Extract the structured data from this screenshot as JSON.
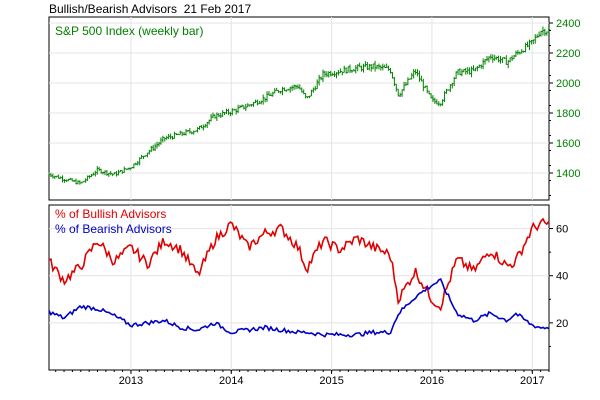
{
  "title": "Bullish/Bearish Advisors  21 Feb 2017",
  "chart_data": [
    {
      "type": "bar",
      "subtype": "ohlc-weekly",
      "legend": "S&P 500 Index (weekly bar)",
      "color": "#008000",
      "y_axis_side": "right",
      "ylim": [
        1220,
        2440
      ],
      "y_ticks": [
        "1400",
        "1600",
        "1800",
        "2000",
        "2200",
        "2400"
      ],
      "x_ticks": [
        "2013",
        "2014",
        "2015",
        "2016",
        "2017"
      ],
      "x": [
        "2012-03",
        "2012-05",
        "2012-07",
        "2012-09",
        "2012-11",
        "2013-01",
        "2013-03",
        "2013-05",
        "2013-07",
        "2013-09",
        "2013-11",
        "2014-01",
        "2014-03",
        "2014-05",
        "2014-07",
        "2014-09",
        "2014-10",
        "2014-12",
        "2015-02",
        "2015-04",
        "2015-06",
        "2015-08",
        "2015-09",
        "2015-11",
        "2016-01",
        "2016-02",
        "2016-04",
        "2016-06",
        "2016-08",
        "2016-10",
        "2016-11",
        "2017-01",
        "2017-02"
      ],
      "values": [
        1395,
        1360,
        1330,
        1420,
        1390,
        1440,
        1540,
        1630,
        1660,
        1690,
        1780,
        1810,
        1850,
        1900,
        1960,
        1980,
        1890,
        2060,
        2080,
        2100,
        2110,
        2090,
        1920,
        2080,
        1880,
        1870,
        2070,
        2080,
        2180,
        2140,
        2190,
        2270,
        2350
      ],
      "grid": true
    },
    {
      "type": "line",
      "legend_position": "top-left",
      "y_axis_side": "right",
      "ylim": [
        0,
        70
      ],
      "y_ticks": [
        "20",
        "40",
        "60"
      ],
      "x_ticks": [
        "2013",
        "2014",
        "2015",
        "2016",
        "2017"
      ],
      "x": [
        "2012-03",
        "2012-05",
        "2012-07",
        "2012-09",
        "2012-11",
        "2013-01",
        "2013-03",
        "2013-05",
        "2013-07",
        "2013-09",
        "2013-11",
        "2014-01",
        "2014-03",
        "2014-05",
        "2014-07",
        "2014-09",
        "2014-10",
        "2014-12",
        "2015-02",
        "2015-04",
        "2015-06",
        "2015-08",
        "2015-09",
        "2015-11",
        "2016-01",
        "2016-02",
        "2016-04",
        "2016-06",
        "2016-08",
        "2016-10",
        "2016-11",
        "2017-01",
        "2017-02"
      ],
      "series": [
        {
          "name": "% of Bullish Advisors",
          "color": "#e00000",
          "values": [
            47,
            38,
            44,
            55,
            46,
            52,
            45,
            55,
            51,
            40,
            55,
            62,
            52,
            58,
            60,
            52,
            43,
            55,
            51,
            56,
            52,
            49,
            30,
            42,
            30,
            27,
            47,
            42,
            51,
            44,
            46,
            60,
            62
          ]
        },
        {
          "name": "% of Bearish Advisors",
          "color": "#0000c8",
          "values": [
            25,
            22,
            27,
            26,
            23,
            19,
            20,
            21,
            18,
            17,
            20,
            16,
            17,
            18,
            17,
            16,
            16,
            15,
            15,
            15,
            16,
            16,
            24,
            31,
            36,
            38,
            24,
            21,
            24,
            21,
            24,
            19,
            18
          ]
        }
      ],
      "grid": true
    }
  ]
}
